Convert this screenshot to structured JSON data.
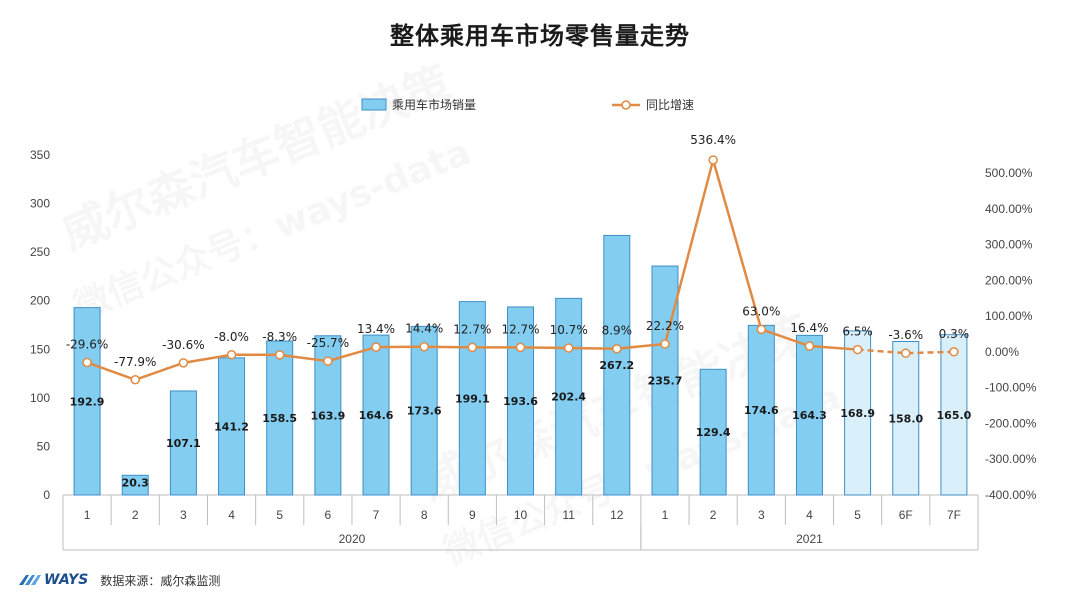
{
  "title": "整体乘用车市场零售量走势",
  "footer": {
    "logo_text": "WAYS",
    "source": "数据来源：威尔森监测"
  },
  "watermark": {
    "line1": "威尔森汽车智能决策",
    "line2": "微信公众号：ways-data"
  },
  "colors": {
    "bar_fill": "#82CDF0",
    "bar_stroke": "#3E8FC7",
    "bar_forecast_fill": "#D9F0FA",
    "line": "#E08A43",
    "marker_fill": "#FFFFFF",
    "axis_line": "#BFBFBF"
  },
  "chart_data": {
    "type": "bar-line",
    "categories": [
      "1",
      "2",
      "3",
      "4",
      "5",
      "6",
      "7",
      "8",
      "9",
      "10",
      "11",
      "12",
      "1",
      "2",
      "3",
      "4",
      "5",
      "6F",
      "7F"
    ],
    "groups": [
      {
        "label": "2020",
        "start": 0,
        "end": 11
      },
      {
        "label": "2021",
        "start": 12,
        "end": 18
      }
    ],
    "series": [
      {
        "name": "乘用车市场销量",
        "type": "bar",
        "axis": "left",
        "values": [
          192.9,
          20.3,
          107.1,
          141.2,
          158.5,
          163.9,
          164.6,
          173.6,
          199.1,
          193.6,
          202.4,
          267.2,
          235.7,
          129.4,
          174.6,
          164.3,
          168.9,
          158.0,
          165.0
        ],
        "labels": [
          "192.9",
          "20.3",
          "107.1",
          "141.2",
          "158.5",
          "163.9",
          "164.6",
          "173.6",
          "199.1",
          "193.6",
          "202.4",
          "267.2",
          "235.7",
          "129.4",
          "174.6",
          "164.3",
          "168.9",
          "158.0",
          "165.0"
        ],
        "forecast_from_index": 16
      },
      {
        "name": "同比增速",
        "type": "line",
        "axis": "right",
        "values": [
          -29.6,
          -77.9,
          -30.6,
          -8.0,
          -8.3,
          -25.7,
          13.4,
          14.4,
          12.7,
          12.7,
          10.7,
          8.9,
          22.2,
          536.4,
          63.0,
          16.4,
          6.5,
          -3.6,
          0.3
        ],
        "labels": [
          "-29.6%",
          "-77.9%",
          "-30.6%",
          "-8.0%",
          "-8.3%",
          "-25.7%",
          "13.4%",
          "14.4%",
          "12.7%",
          "12.7%",
          "10.7%",
          "8.9%",
          "22.2%",
          "536.4%",
          "63.0%",
          "16.4%",
          "6.5%",
          "-3.6%",
          "0.3%"
        ],
        "dashed_from_index": 16
      }
    ],
    "y_left": {
      "min": 0,
      "max": 350,
      "ticks": [
        "0",
        "50",
        "100",
        "150",
        "200",
        "250",
        "300",
        "350"
      ]
    },
    "y_right": {
      "min": -400,
      "max": 500,
      "ticks": [
        "-400.00%",
        "-300.00%",
        "-200.00%",
        "-100.00%",
        "0.00%",
        "100.00%",
        "200.00%",
        "300.00%",
        "400.00%",
        "500.00%"
      ]
    },
    "legend_position": "top-center"
  }
}
